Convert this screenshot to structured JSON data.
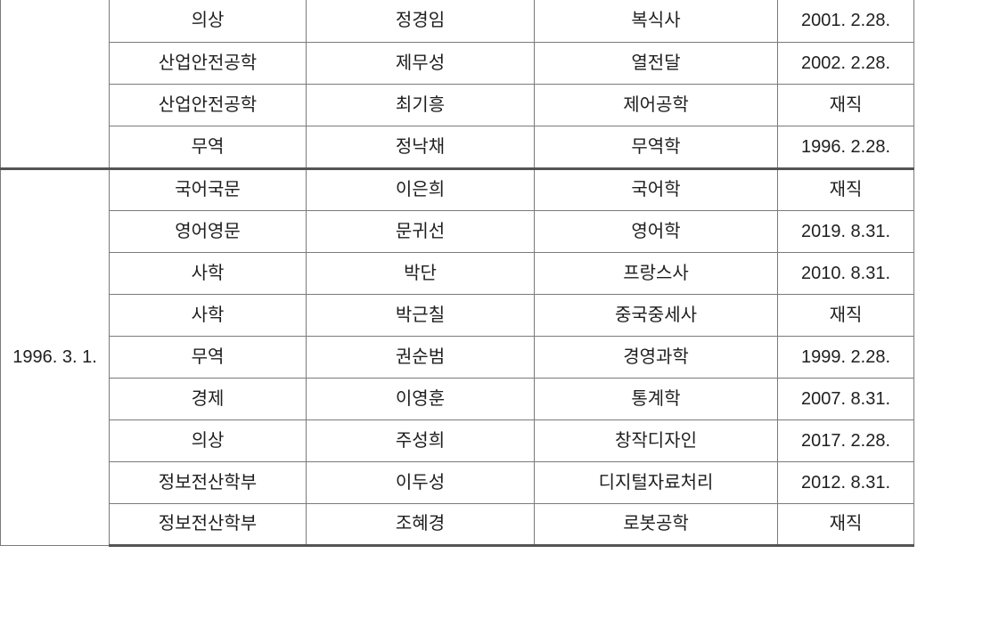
{
  "document": {
    "kind": "faculty-roster-table-fragment",
    "language": "ko"
  },
  "colors": {
    "background": "#ffffff",
    "text": "#1f1f1f",
    "border_thin": "#7a7a7a",
    "border_thick": "#545454"
  },
  "table": {
    "columns": [
      "group_date",
      "department",
      "name",
      "field",
      "status"
    ],
    "groups": [
      {
        "date": "",
        "rows": [
          {
            "department": "의상",
            "name": "정경임",
            "field": "복식사",
            "status": "2001. 2.28."
          },
          {
            "department": "산업안전공학",
            "name": "제무성",
            "field": "열전달",
            "status": "2002. 2.28."
          },
          {
            "department": "산업안전공학",
            "name": "최기흥",
            "field": "제어공학",
            "status": "재직"
          },
          {
            "department": "무역",
            "name": "정낙채",
            "field": "무역학",
            "status": "1996. 2.28."
          }
        ]
      },
      {
        "date": "1996. 3. 1.",
        "rows": [
          {
            "department": "국어국문",
            "name": "이은희",
            "field": "국어학",
            "status": "재직"
          },
          {
            "department": "영어영문",
            "name": "문귀선",
            "field": "영어학",
            "status": "2019. 8.31."
          },
          {
            "department": "사학",
            "name": "박단",
            "field": "프랑스사",
            "status": "2010. 8.31."
          },
          {
            "department": "사학",
            "name": "박근칠",
            "field": "중국중세사",
            "status": "재직"
          },
          {
            "department": "무역",
            "name": "권순범",
            "field": "경영과학",
            "status": "1999. 2.28."
          },
          {
            "department": "경제",
            "name": "이영훈",
            "field": "통계학",
            "status": "2007. 8.31."
          },
          {
            "department": "의상",
            "name": "주성희",
            "field": "창작디자인",
            "status": "2017. 2.28."
          },
          {
            "department": "정보전산학부",
            "name": "이두성",
            "field": "디지털자료처리",
            "status": "2012. 8.31."
          },
          {
            "department": "정보전산학부",
            "name": "조혜경",
            "field": "로봇공학",
            "status": "재직"
          }
        ]
      }
    ]
  }
}
